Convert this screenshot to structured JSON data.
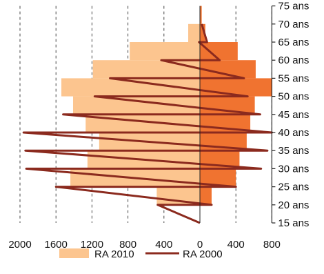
{
  "chart_data": {
    "type": "bar",
    "orientation": "horizontal-pyramid",
    "title": "",
    "xlabel": "",
    "ylabel": "",
    "categories": [
      "15 ans",
      "20 ans",
      "25 ans",
      "30 ans",
      "35 ans",
      "40 ans",
      "45 ans",
      "50 ans",
      "55 ans",
      "60 ans",
      "65 ans",
      "70 ans",
      "75 ans"
    ],
    "x_ticks": [
      {
        "value": -2000,
        "label": "2000"
      },
      {
        "value": -1600,
        "label": "1600"
      },
      {
        "value": -1200,
        "label": "1200"
      },
      {
        "value": -800,
        "label": "800"
      },
      {
        "value": -400,
        "label": "400"
      },
      {
        "value": 0,
        "label": "0"
      },
      {
        "value": 400,
        "label": "400"
      },
      {
        "value": 800,
        "label": "800"
      }
    ],
    "xlim": [
      -2000,
      800
    ],
    "ylim": [
      15,
      75
    ],
    "grid": {
      "vertical_dashed": true
    },
    "colors": {
      "ra2010_left": "#fcc58f",
      "ra2010_right": "#f07330",
      "ra2000": "#8b2a1e",
      "grid": "#444444",
      "axis": "#222222"
    },
    "series": [
      {
        "name": "RA 2010",
        "style": "bars",
        "bins": [
          {
            "from": 15,
            "to": 20,
            "left": 0,
            "right": 0
          },
          {
            "from": 20,
            "to": 25,
            "left": 480,
            "right": 130
          },
          {
            "from": 25,
            "to": 30,
            "left": 1440,
            "right": 400
          },
          {
            "from": 30,
            "to": 35,
            "left": 1250,
            "right": 440
          },
          {
            "from": 35,
            "to": 40,
            "left": 1120,
            "right": 520
          },
          {
            "from": 40,
            "to": 45,
            "left": 1270,
            "right": 560
          },
          {
            "from": 45,
            "to": 50,
            "left": 1410,
            "right": 610
          },
          {
            "from": 50,
            "to": 55,
            "left": 1540,
            "right": 800
          },
          {
            "from": 55,
            "to": 60,
            "left": 1190,
            "right": 620
          },
          {
            "from": 60,
            "to": 65,
            "left": 780,
            "right": 420
          },
          {
            "from": 65,
            "to": 70,
            "left": 130,
            "right": 60
          },
          {
            "from": 70,
            "to": 75,
            "left": 0,
            "right": 20
          }
        ]
      },
      {
        "name": "RA 2000",
        "style": "line",
        "points": [
          [
            15,
            0
          ],
          [
            20,
            -470
          ],
          [
            20,
            130
          ],
          [
            25,
            -1600
          ],
          [
            25,
            400
          ],
          [
            30,
            -1930
          ],
          [
            30,
            680
          ],
          [
            35,
            -1940
          ],
          [
            35,
            750
          ],
          [
            40,
            -1960
          ],
          [
            40,
            800
          ],
          [
            45,
            -1520
          ],
          [
            45,
            670
          ],
          [
            50,
            -1170
          ],
          [
            50,
            530
          ],
          [
            55,
            -1000
          ],
          [
            55,
            490
          ],
          [
            60,
            -430
          ],
          [
            60,
            220
          ],
          [
            65,
            -10
          ],
          [
            65,
            80
          ],
          [
            70,
            20
          ]
        ]
      }
    ],
    "legend": {
      "position": "bottom-center",
      "entries": [
        {
          "label": "RA 2010",
          "swatch": "box"
        },
        {
          "label": "RA 2000",
          "swatch": "line"
        }
      ]
    }
  }
}
